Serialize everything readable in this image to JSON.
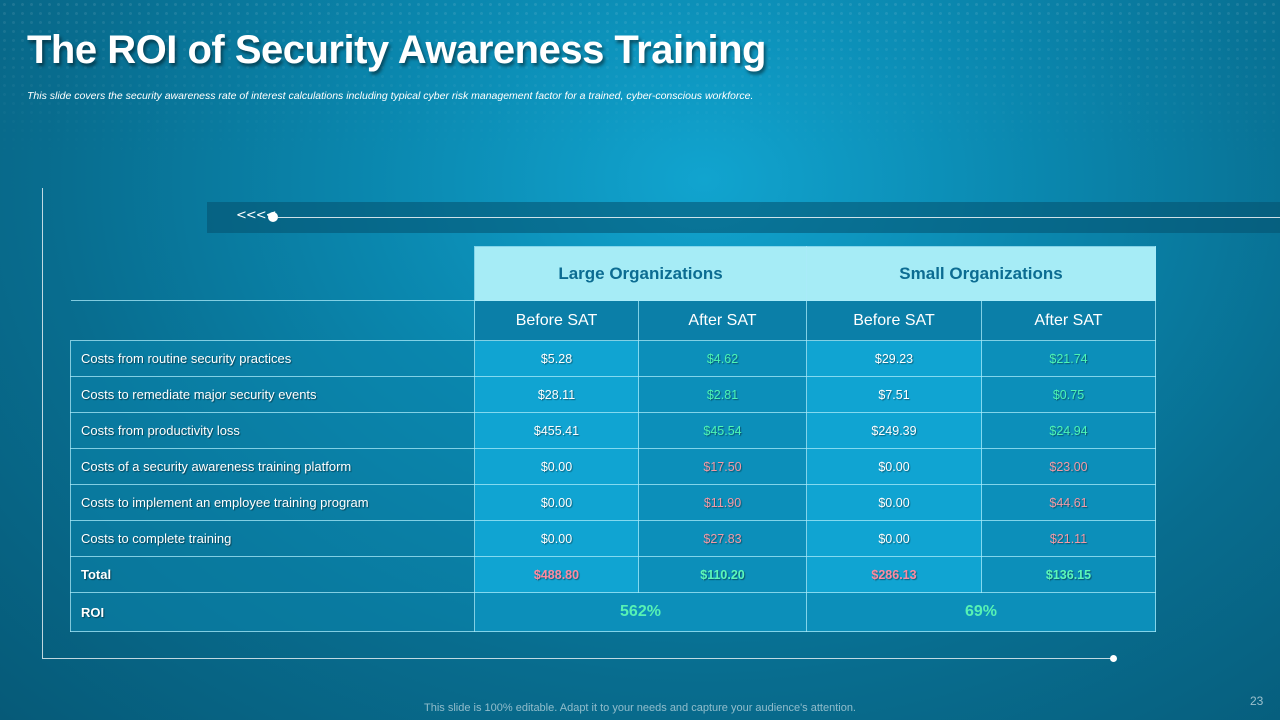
{
  "title": "The ROI of Security Awareness Training",
  "subtitle": "This slide covers the security awareness rate of interest calculations including typical cyber risk management factor for a trained, cyber-conscious workforce.",
  "decoration": {
    "arrows": "<<<<"
  },
  "table": {
    "groups": [
      "Large Organizations",
      "Small Organizations"
    ],
    "subheaders": [
      "Before SAT",
      "After SAT",
      "Before SAT",
      "After SAT"
    ],
    "rows": [
      {
        "label": "Costs from routine security practices",
        "values": [
          "$5.28",
          "$4.62",
          "$29.23",
          "$21.74"
        ]
      },
      {
        "label": "Costs to remediate major security events",
        "values": [
          "$28.11",
          "$2.81",
          "$7.51",
          "$0.75"
        ]
      },
      {
        "label": "Costs from productivity loss",
        "values": [
          "$455.41",
          "$45.54",
          "$249.39",
          "$24.94"
        ]
      },
      {
        "label": "Costs of a  security awareness training platform",
        "values": [
          "$0.00",
          "$17.50",
          "$0.00",
          "$23.00"
        ]
      },
      {
        "label": "Costs to implement an employee training program",
        "values": [
          "$0.00",
          "$11.90",
          "$0.00",
          "$44.61"
        ]
      },
      {
        "label": "Costs to complete training",
        "values": [
          "$0.00",
          "$27.83",
          "$0.00",
          "$21.11"
        ]
      }
    ],
    "total": {
      "label": "Total",
      "values": [
        "$488.80",
        "$110.20",
        "$286.13",
        "$136.15"
      ]
    },
    "roi": {
      "label": "ROI",
      "values": [
        "562%",
        "69%"
      ]
    }
  },
  "colors": {
    "increase_cost": "#f39aa6",
    "decrease_cost": "#4df5b4",
    "header_band": "#a6ecf6"
  },
  "footer": "This slide is 100% editable. Adapt it to your needs and capture your audience's attention.",
  "page_number": "23"
}
